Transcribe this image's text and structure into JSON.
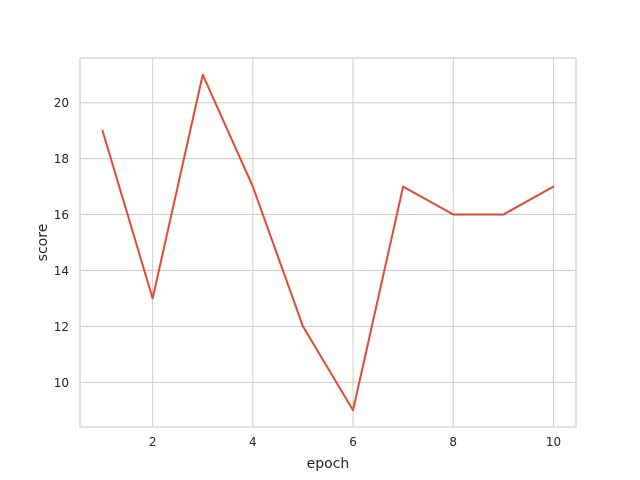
{
  "chart_data": {
    "type": "line",
    "title": "",
    "xlabel": "epoch",
    "ylabel": "score",
    "x": [
      1,
      2,
      3,
      4,
      5,
      6,
      7,
      8,
      9,
      10
    ],
    "series": [
      {
        "values": [
          19,
          13,
          21,
          17,
          12,
          9,
          17,
          16,
          16,
          17
        ],
        "color": "#e24a33"
      }
    ],
    "xticks": [
      2,
      4,
      6,
      8,
      10
    ],
    "yticks": [
      10,
      12,
      14,
      16,
      18,
      20
    ],
    "xlim": [
      0.55,
      10.45
    ],
    "ylim": [
      8.4,
      21.6
    ],
    "grid": true,
    "legend": "none"
  }
}
